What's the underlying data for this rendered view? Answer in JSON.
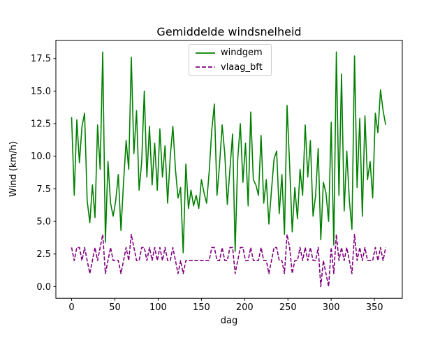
{
  "figure": {
    "title": "Gemiddelde windsnelheid",
    "xlabel": "dag",
    "ylabel": "Wind (km/h)",
    "background": "#ffffff",
    "spine_color": "#000000"
  },
  "legend": {
    "entries": [
      {
        "label": "windgem",
        "color": "#008000",
        "style": "solid"
      },
      {
        "label": "vlaag_bft",
        "color": "#800080",
        "style": "dashed"
      }
    ]
  },
  "chart_data": {
    "type": "line",
    "title": "Gemiddelde windsnelheid",
    "xlabel": "dag",
    "ylabel": "Wind (km/h)",
    "grid": false,
    "legend_position": "upper center",
    "xlim": [
      -18.2,
      382.2
    ],
    "ylim": [
      -0.9,
      18.9
    ],
    "xticks": [
      0,
      50,
      100,
      150,
      200,
      250,
      300,
      350
    ],
    "xtick_labels": [
      "0",
      "50",
      "100",
      "150",
      "200",
      "250",
      "300",
      "350"
    ],
    "yticks": [
      0.0,
      2.5,
      5.0,
      7.5,
      10.0,
      12.5,
      15.0,
      17.5
    ],
    "ytick_labels": [
      "0.0",
      "2.5",
      "5.0",
      "7.5",
      "10.0",
      "12.5",
      "15.0",
      "17.5"
    ],
    "x": [
      0,
      3,
      6,
      9,
      12,
      15,
      18,
      21,
      24,
      27,
      30,
      33,
      36,
      39,
      42,
      45,
      48,
      51,
      54,
      57,
      60,
      63,
      66,
      69,
      72,
      75,
      78,
      81,
      84,
      87,
      90,
      93,
      96,
      99,
      102,
      105,
      108,
      111,
      114,
      117,
      120,
      123,
      126,
      129,
      132,
      135,
      138,
      141,
      144,
      147,
      150,
      153,
      156,
      159,
      162,
      165,
      168,
      171,
      174,
      177,
      180,
      183,
      186,
      189,
      192,
      195,
      198,
      201,
      204,
      207,
      210,
      213,
      216,
      219,
      222,
      225,
      228,
      231,
      234,
      237,
      240,
      243,
      246,
      249,
      252,
      255,
      258,
      261,
      264,
      267,
      270,
      273,
      276,
      279,
      282,
      285,
      288,
      291,
      294,
      297,
      300,
      303,
      306,
      309,
      312,
      315,
      318,
      321,
      324,
      327,
      330,
      333,
      336,
      339,
      342,
      345,
      348,
      351,
      354,
      357,
      360,
      363
    ],
    "series": [
      {
        "name": "windgem",
        "color": "#008000",
        "linestyle": "solid",
        "values": [
          13.0,
          7.0,
          12.8,
          9.5,
          12.3,
          13.3,
          6.6,
          4.9,
          7.8,
          5.3,
          12.4,
          9.0,
          18.0,
          3.4,
          9.6,
          6.4,
          5.4,
          6.6,
          8.6,
          4.3,
          8.0,
          11.2,
          9.0,
          17.6,
          10.2,
          13.5,
          7.4,
          9.6,
          15.0,
          8.4,
          12.3,
          7.8,
          11.0,
          7.4,
          12.1,
          8.4,
          10.8,
          6.4,
          10.0,
          12.3,
          9.0,
          6.8,
          7.6,
          2.6,
          9.4,
          6.0,
          7.4,
          6.2,
          7.0,
          6.0,
          8.2,
          7.2,
          6.4,
          8.8,
          12.0,
          14.0,
          7.0,
          9.4,
          12.4,
          10.2,
          6.3,
          9.0,
          11.7,
          2.7,
          9.8,
          12.5,
          8.0,
          11.0,
          6.2,
          13.4,
          8.2,
          7.8,
          7.0,
          11.6,
          6.4,
          8.2,
          4.8,
          7.4,
          9.8,
          10.4,
          5.6,
          8.6,
          4.0,
          13.9,
          9.3,
          4.2,
          7.6,
          5.2,
          9.0,
          7.0,
          12.4,
          8.4,
          11.2,
          5.4,
          7.0,
          10.6,
          3.6,
          8.0,
          7.2,
          5.0,
          12.6,
          3.2,
          18.0,
          7.0,
          16.3,
          5.8,
          10.4,
          6.6,
          4.4,
          17.7,
          7.6,
          12.9,
          5.4,
          13.1,
          8.2,
          9.6,
          6.8,
          13.3,
          11.8,
          15.1,
          13.5,
          12.4
        ]
      },
      {
        "name": "vlaag_bft",
        "color": "#800080",
        "linestyle": "dashed",
        "values": [
          3,
          2,
          3,
          3,
          2,
          3,
          2,
          1,
          2,
          3,
          2,
          3,
          4,
          1,
          2,
          3,
          2,
          2,
          2,
          1,
          2,
          3,
          2,
          4,
          3,
          2,
          2,
          3,
          3,
          2,
          3,
          2,
          3,
          2,
          3,
          2,
          3,
          2,
          2,
          3,
          2,
          1,
          2,
          1,
          2,
          2,
          2,
          2,
          2,
          2,
          2,
          2,
          2,
          2,
          3,
          3,
          2,
          2,
          3,
          2,
          2,
          3,
          3,
          1,
          2,
          3,
          3,
          2,
          2,
          3,
          2,
          2,
          2,
          3,
          2,
          2,
          1,
          2,
          3,
          3,
          2,
          2,
          1,
          4,
          3,
          1,
          2,
          2,
          3,
          2,
          3,
          2,
          3,
          2,
          2,
          3,
          0,
          2,
          1,
          0,
          3,
          1,
          4,
          2,
          3,
          2,
          3,
          2,
          1,
          4,
          2,
          3,
          2,
          3,
          2,
          2,
          2,
          3,
          2,
          3,
          2,
          3
        ]
      }
    ]
  }
}
